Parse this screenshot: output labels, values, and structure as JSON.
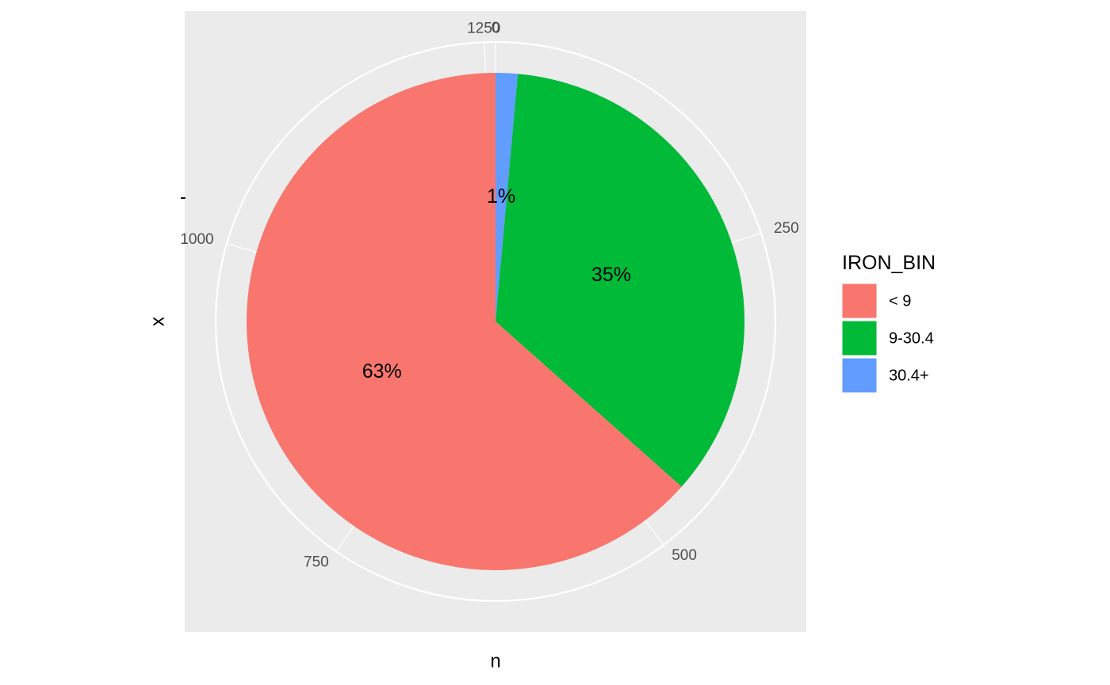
{
  "chart_data": {
    "type": "pie",
    "title": "",
    "xlabel": "n",
    "ylabel": "x",
    "y_tick_label": "-",
    "categories": [
      "< 9",
      "9-30.4",
      "30.4+"
    ],
    "values": [
      798,
      442,
      18
    ],
    "percent_labels": [
      "63%",
      "35%",
      "1%"
    ],
    "colors": [
      "#F8766D",
      "#00BA38",
      "#619CFF"
    ],
    "panel_background": "#EBEBEB",
    "grid_color": "#FFFFFF",
    "radial_axis": {
      "range": [
        0,
        1258
      ],
      "ticks": [
        0,
        250,
        500,
        750,
        1000,
        1250
      ],
      "tick_labels": [
        "0",
        "250",
        "500",
        "750",
        "1000",
        "1250"
      ]
    },
    "legend": {
      "title": "IRON_BIN",
      "position": "right",
      "entries": [
        "< 9",
        "9-30.4",
        "30.4+"
      ]
    }
  }
}
